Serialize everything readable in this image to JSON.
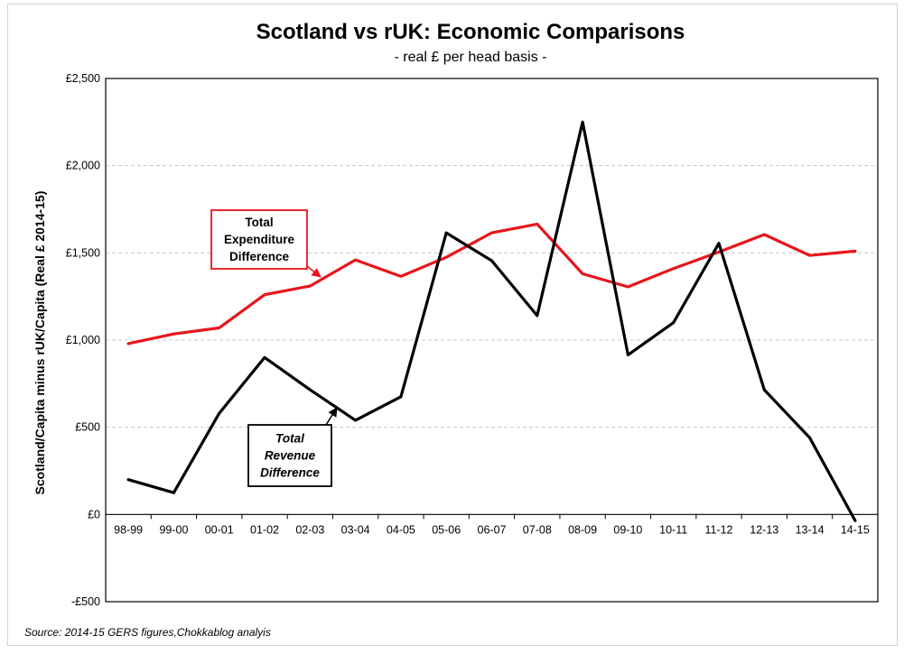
{
  "chart_data": {
    "type": "line",
    "title": "Scotland vs rUK: Economic Comparisons",
    "subtitle": "- real £ per head basis -",
    "ylabel": "Scotland/Capita minus rUK/Capita (Real £ 2014-15)",
    "xlabel": "",
    "ylim": [
      -500,
      2500
    ],
    "yticks": [
      -500,
      0,
      500,
      1000,
      1500,
      2000,
      2500
    ],
    "ytick_labels": [
      "-£500",
      "£0",
      "£500",
      "£1,000",
      "£1,500",
      "£2,000",
      "£2,500"
    ],
    "grid": "horizontal-dashed",
    "categories": [
      "98-99",
      "99-00",
      "00-01",
      "01-02",
      "02-03",
      "03-04",
      "04-05",
      "05-06",
      "06-07",
      "07-08",
      "08-09",
      "09-10",
      "10-11",
      "11-12",
      "12-13",
      "13-14",
      "14-15"
    ],
    "series": [
      {
        "name": "Total Expenditure Difference",
        "color": "#e8151b",
        "values": [
          980,
          1035,
          1070,
          1260,
          1310,
          1460,
          1365,
          1475,
          1615,
          1665,
          1380,
          1305,
          1410,
          1505,
          1605,
          1485,
          1510
        ]
      },
      {
        "name": "Total Revenue Difference",
        "color": "#000000",
        "values": [
          200,
          125,
          580,
          900,
          715,
          540,
          675,
          1615,
          1455,
          1140,
          2250,
          915,
          1100,
          1555,
          715,
          440,
          -35
        ]
      }
    ],
    "annotations": [
      {
        "text": [
          "Total",
          "Expenditure",
          "Difference"
        ],
        "series": "Total Expenditure Difference",
        "box_color": "#e8151b",
        "italic": false
      },
      {
        "text": [
          "Total",
          "Revenue",
          "Difference"
        ],
        "series": "Total Revenue Difference",
        "box_color": "#000000",
        "italic": true
      }
    ],
    "source": "Source: 2014-15 GERS figures,Chokkablog analyis"
  }
}
